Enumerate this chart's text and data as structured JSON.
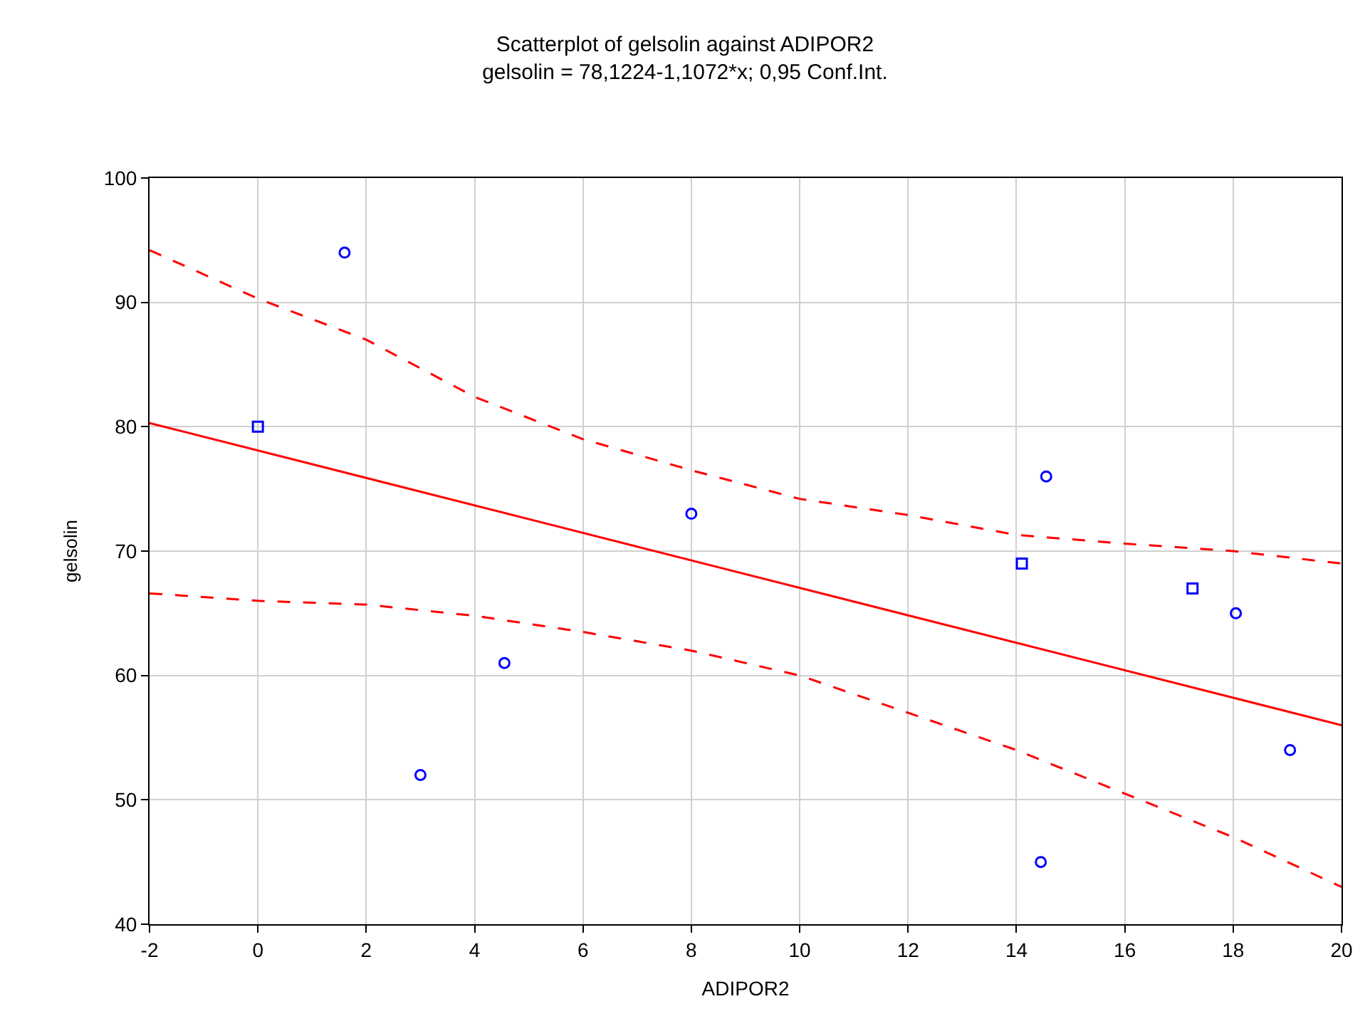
{
  "chart_data": {
    "type": "scatter",
    "title": "Scatterplot of gelsolin against ADIPOR2",
    "subtitle": "gelsolin = 78,1224-1,1072*x; 0,95 Conf.Int.",
    "xlabel": "ADIPOR2",
    "ylabel": "gelsolin",
    "series": [
      {
        "marker": "circle",
        "color": "#0000ff",
        "x": [
          1.6,
          3.0,
          4.55,
          8.0,
          14.55,
          14.45,
          18.05,
          19.05
        ],
        "values": [
          94,
          52,
          61,
          73,
          76,
          45,
          65,
          54
        ]
      },
      {
        "marker": "square",
        "color": "#0000ff",
        "x": [
          0,
          14.1,
          17.25
        ],
        "values": [
          80,
          69,
          67
        ]
      },
      {
        "type": "line",
        "line_style": "solid",
        "color": "#ff0000",
        "x": [
          -2,
          20
        ],
        "values": [
          80.3,
          56.0
        ]
      },
      {
        "type": "line",
        "line_style": "dashed",
        "color": "#ff0000",
        "x": [
          -2,
          0,
          2,
          4,
          6,
          8,
          10,
          12,
          14,
          16,
          18,
          20
        ],
        "values": [
          94.2,
          90.3,
          87,
          82.4,
          79,
          76.5,
          74.2,
          72.9,
          71.3,
          70.6,
          70,
          69
        ]
      },
      {
        "type": "line",
        "line_style": "dashed",
        "color": "#ff0000",
        "x": [
          -2,
          0,
          2,
          4,
          6,
          8,
          10,
          12,
          14,
          16,
          18,
          20
        ],
        "values": [
          66.6,
          66,
          65.7,
          64.8,
          63.5,
          62,
          60,
          57,
          54,
          50.5,
          47,
          43
        ]
      }
    ],
    "xlim": [
      -2,
      20
    ],
    "xticks": [
      -2,
      0,
      2,
      4,
      6,
      8,
      10,
      12,
      14,
      16,
      18,
      20
    ],
    "ylim": [
      40,
      100
    ],
    "yticks": [
      40,
      50,
      60,
      70,
      80,
      90,
      100
    ],
    "grid": true
  }
}
